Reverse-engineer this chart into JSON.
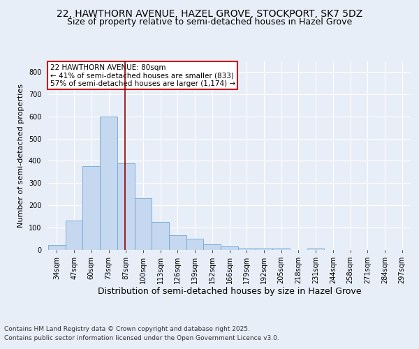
{
  "title": "22, HAWTHORN AVENUE, HAZEL GROVE, STOCKPORT, SK7 5DZ",
  "subtitle": "Size of property relative to semi-detached houses in Hazel Grove",
  "xlabel": "Distribution of semi-detached houses by size in Hazel Grove",
  "ylabel": "Number of semi-detached properties",
  "categories": [
    "34sqm",
    "47sqm",
    "60sqm",
    "73sqm",
    "87sqm",
    "100sqm",
    "113sqm",
    "126sqm",
    "139sqm",
    "152sqm",
    "166sqm",
    "179sqm",
    "192sqm",
    "205sqm",
    "218sqm",
    "231sqm",
    "244sqm",
    "258sqm",
    "271sqm",
    "284sqm",
    "297sqm"
  ],
  "values": [
    20,
    130,
    375,
    600,
    390,
    230,
    125,
    65,
    50,
    25,
    15,
    5,
    5,
    5,
    0,
    5,
    0,
    0,
    0,
    0,
    0
  ],
  "bar_color": "#c5d8ef",
  "bar_edge_color": "#6fa8d0",
  "red_line_x": 3.97,
  "annotation_text": "22 HAWTHORN AVENUE: 80sqm\n← 41% of semi-detached houses are smaller (833)\n57% of semi-detached houses are larger (1,174) →",
  "annotation_box_color": "#ffffff",
  "annotation_box_edge": "#cc0000",
  "ylim": [
    0,
    850
  ],
  "yticks": [
    0,
    100,
    200,
    300,
    400,
    500,
    600,
    700,
    800
  ],
  "footer_line1": "Contains HM Land Registry data © Crown copyright and database right 2025.",
  "footer_line2": "Contains public sector information licensed under the Open Government Licence v3.0.",
  "bg_color": "#e8eef8",
  "plot_bg_color": "#e8eef8",
  "grid_color": "#ffffff",
  "title_fontsize": 10,
  "subtitle_fontsize": 9,
  "xlabel_fontsize": 9,
  "ylabel_fontsize": 8,
  "tick_fontsize": 7,
  "annotation_fontsize": 7.5,
  "footer_fontsize": 6.5
}
